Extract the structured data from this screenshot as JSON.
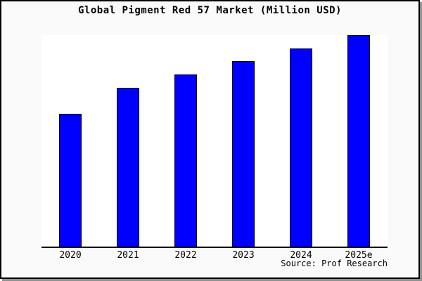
{
  "header": {
    "title": "Global Pigment Red 57 Market (Million USD)"
  },
  "footer": {
    "source": "Source: Prof Research"
  },
  "colors": {
    "background": "#fafafa",
    "plot_background": "#ffffff",
    "bar_fill": "#0000fe",
    "bar_border": "#000000",
    "axis": "#000000",
    "frame_border": "#000000",
    "shadow": "#909090",
    "text": "#000000"
  },
  "chart_data": {
    "type": "bar",
    "title": "Global Pigment Red 57 Market (Million USD)",
    "categories": [
      "2020",
      "2021",
      "2022",
      "2023",
      "2024",
      "2025e"
    ],
    "values": [
      62.8,
      75.1,
      81.4,
      87.7,
      93.7,
      100
    ],
    "value_scale": "relative bar heights, % of 2025e bar (no y-axis tick labels or data labels visible)",
    "xlabel": "",
    "ylabel": "",
    "ylim": [
      0,
      100
    ],
    "grid": false,
    "legend": false,
    "annotations": [
      "Source: Prof Research"
    ]
  }
}
